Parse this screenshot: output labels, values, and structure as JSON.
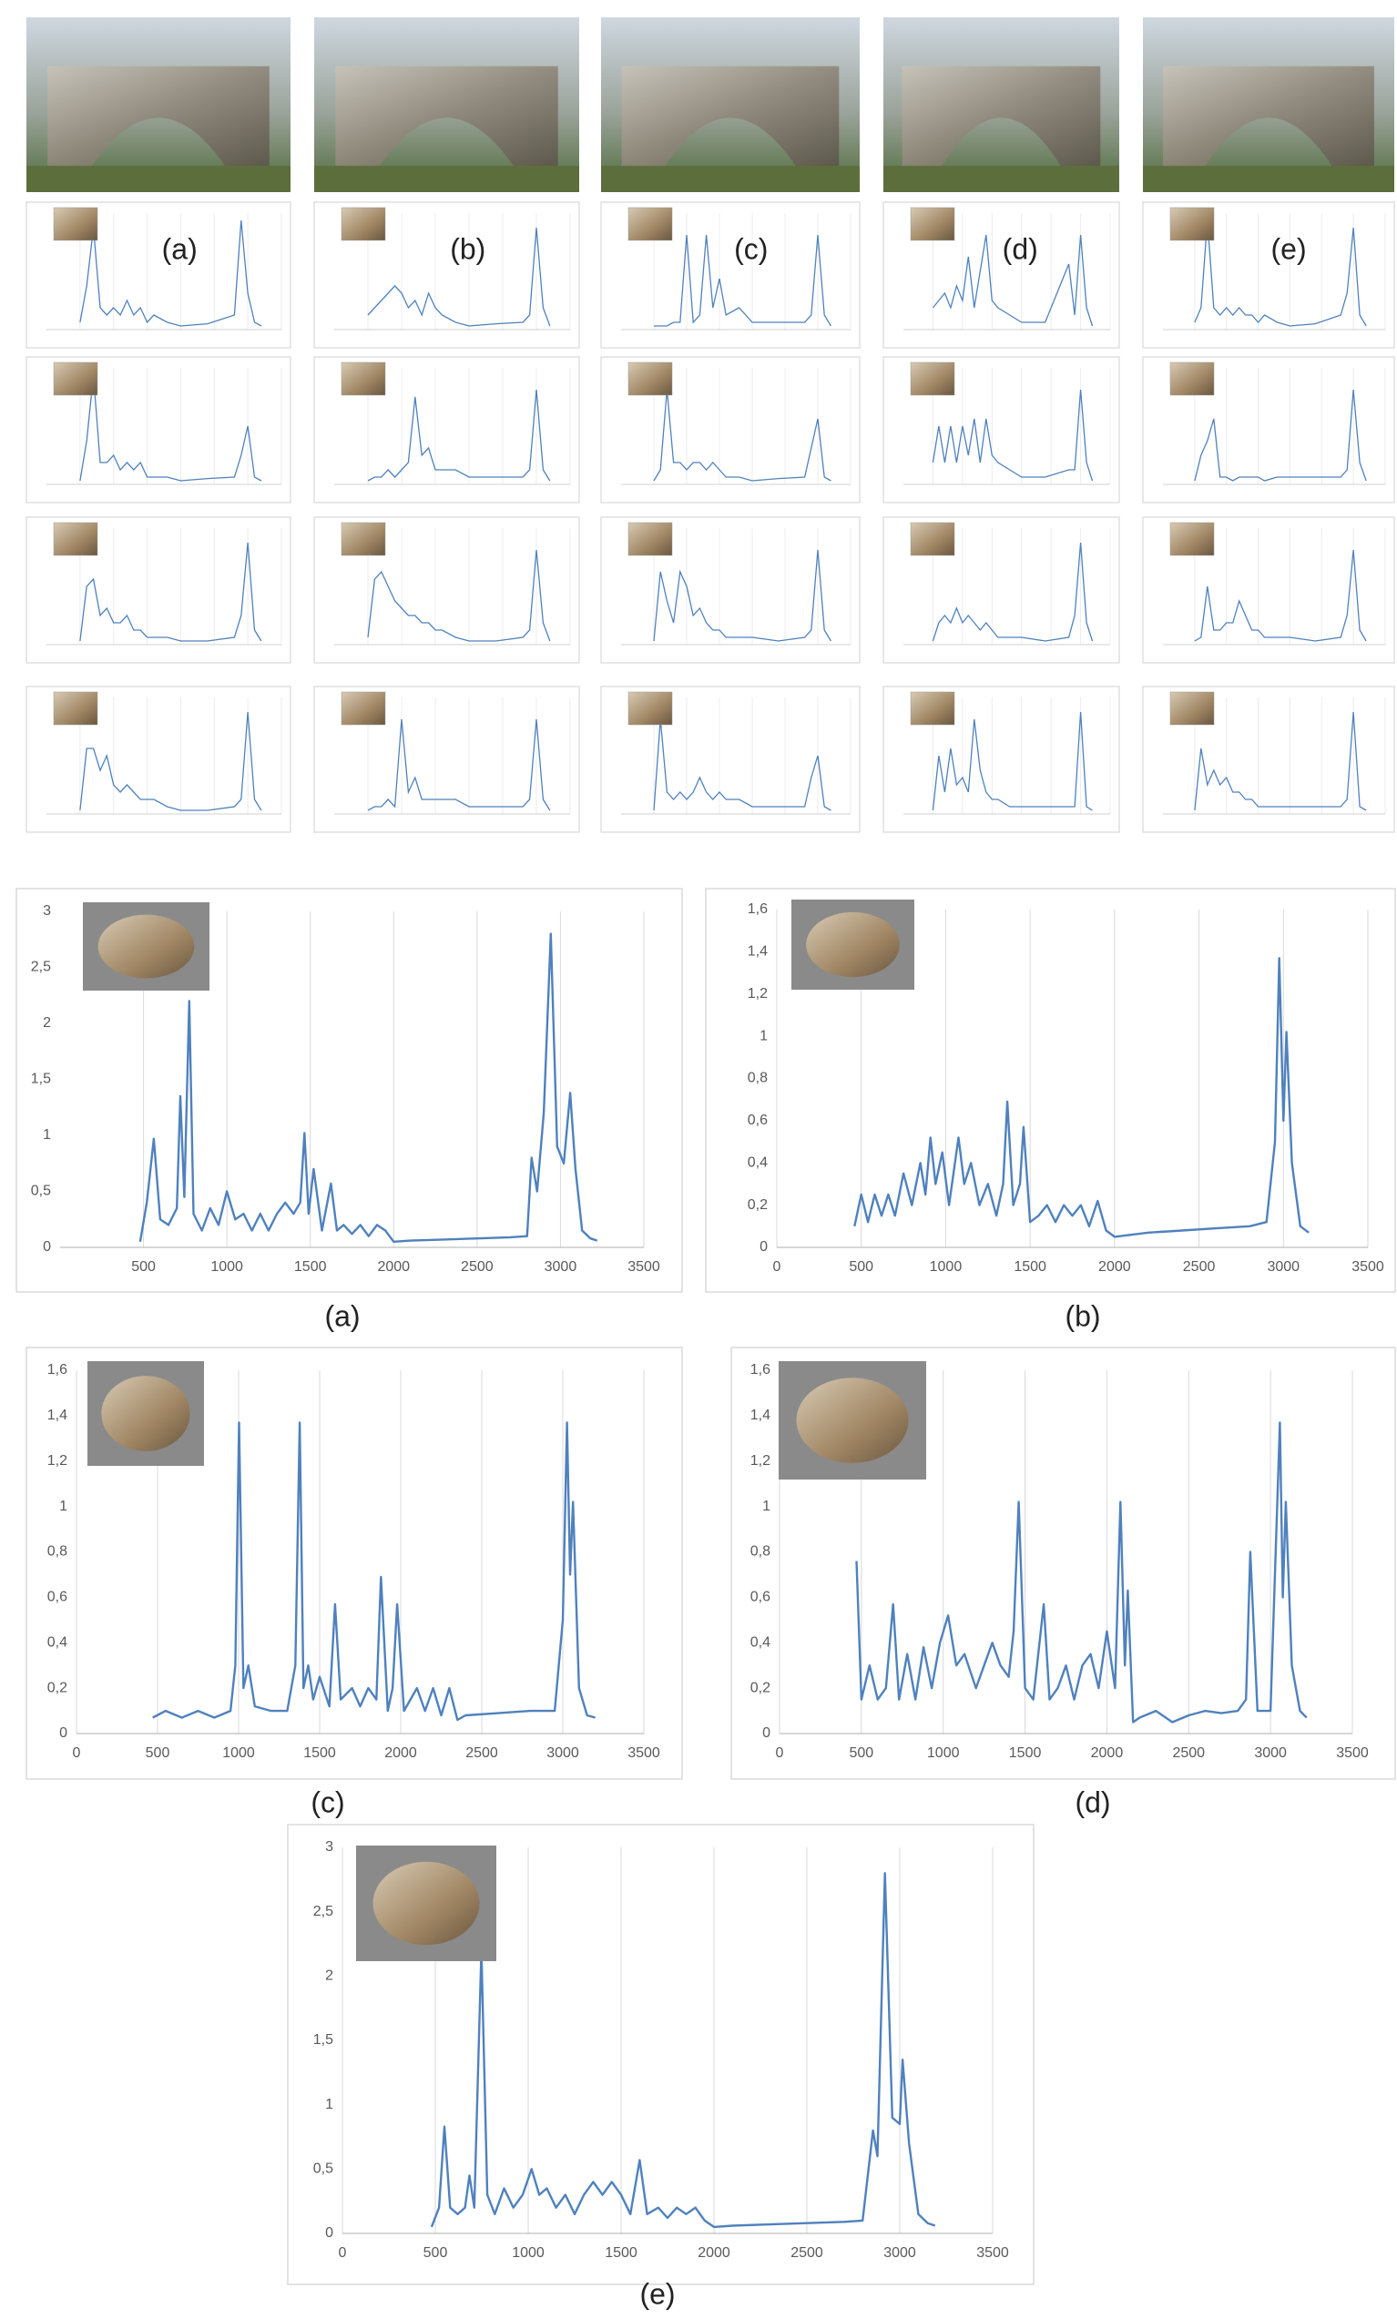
{
  "chart_data": [
    {
      "type": "line",
      "label": "(a)",
      "color": "#4f81bd",
      "grid": true,
      "xlim": [
        0,
        3500
      ],
      "xticks": [
        500,
        1000,
        1500,
        2000,
        2500,
        3000,
        3500
      ],
      "ylim": [
        0,
        3
      ],
      "yticks": [
        0,
        {
          "value": 0.5,
          "label": "0,5"
        },
        1,
        {
          "value": 1.5,
          "label": "1,5"
        },
        2,
        {
          "value": 2.5,
          "label": "2,5"
        },
        3
      ],
      "x": [
        480,
        520,
        562,
        600,
        650,
        700,
        721,
        745,
        774,
        800,
        850,
        900,
        950,
        1000,
        1050,
        1100,
        1150,
        1200,
        1250,
        1300,
        1350,
        1400,
        1440,
        1465,
        1490,
        1520,
        1570,
        1624,
        1660,
        1700,
        1750,
        1800,
        1850,
        1900,
        1950,
        2000,
        2100,
        2300,
        2500,
        2700,
        2800,
        2827,
        2860,
        2900,
        2942,
        2980,
        3020,
        3058,
        3090,
        3130,
        3180,
        3220
      ],
      "values": [
        0.05,
        0.4,
        0.97,
        0.25,
        0.2,
        0.35,
        1.35,
        0.45,
        2.2,
        0.3,
        0.15,
        0.35,
        0.2,
        0.5,
        0.25,
        0.3,
        0.15,
        0.3,
        0.15,
        0.3,
        0.4,
        0.3,
        0.4,
        1.02,
        0.3,
        0.7,
        0.15,
        0.57,
        0.15,
        0.2,
        0.12,
        0.2,
        0.1,
        0.2,
        0.15,
        0.05,
        0.06,
        0.07,
        0.08,
        0.09,
        0.1,
        0.8,
        0.5,
        1.2,
        2.8,
        0.9,
        0.75,
        1.38,
        0.7,
        0.15,
        0.08,
        0.06
      ]
    },
    {
      "type": "line",
      "label": "(b)",
      "color": "#4f81bd",
      "grid": true,
      "xlim": [
        0,
        3500
      ],
      "xticks": [
        0,
        500,
        1000,
        1500,
        2000,
        2500,
        3000,
        3500
      ],
      "ylim": [
        0,
        1.6
      ],
      "yticks": [
        0,
        {
          "value": 0.2,
          "label": "0,2"
        },
        {
          "value": 0.4,
          "label": "0,4"
        },
        {
          "value": 0.6,
          "label": "0,6"
        },
        {
          "value": 0.8,
          "label": "0,8"
        },
        1,
        {
          "value": 1.2,
          "label": "1,2"
        },
        {
          "value": 1.4,
          "label": "1,4"
        },
        {
          "value": 1.6,
          "label": "1,6"
        }
      ],
      "x": [
        460,
        500,
        540,
        580,
        620,
        660,
        700,
        750,
        800,
        850,
        880,
        910,
        940,
        980,
        1020,
        1076,
        1110,
        1150,
        1200,
        1250,
        1300,
        1340,
        1365,
        1400,
        1440,
        1461,
        1500,
        1550,
        1600,
        1650,
        1700,
        1750,
        1800,
        1850,
        1900,
        1950,
        2000,
        2200,
        2400,
        2600,
        2800,
        2900,
        2950,
        2975,
        3000,
        3018,
        3050,
        3100,
        3150
      ],
      "values": [
        0.1,
        0.25,
        0.12,
        0.25,
        0.15,
        0.25,
        0.15,
        0.35,
        0.2,
        0.4,
        0.25,
        0.52,
        0.3,
        0.45,
        0.2,
        0.52,
        0.3,
        0.4,
        0.2,
        0.3,
        0.15,
        0.3,
        0.69,
        0.2,
        0.3,
        0.57,
        0.12,
        0.15,
        0.2,
        0.12,
        0.2,
        0.15,
        0.2,
        0.1,
        0.22,
        0.08,
        0.05,
        0.07,
        0.08,
        0.09,
        0.1,
        0.12,
        0.5,
        1.37,
        0.6,
        1.02,
        0.4,
        0.1,
        0.07
      ]
    },
    {
      "type": "line",
      "label": "(c)",
      "color": "#4f81bd",
      "grid": true,
      "xlim": [
        0,
        3500
      ],
      "xticks": [
        0,
        500,
        1000,
        1500,
        2000,
        2500,
        3000,
        3500
      ],
      "ylim": [
        0,
        1.6
      ],
      "yticks": [
        0,
        {
          "value": 0.2,
          "label": "0,2"
        },
        {
          "value": 0.4,
          "label": "0,4"
        },
        {
          "value": 0.6,
          "label": "0,6"
        },
        {
          "value": 0.8,
          "label": "0,8"
        },
        1,
        {
          "value": 1.2,
          "label": "1,2"
        },
        {
          "value": 1.4,
          "label": "1,4"
        },
        {
          "value": 1.6,
          "label": "1,6"
        }
      ],
      "x": [
        470,
        550,
        650,
        750,
        850,
        950,
        980,
        1003,
        1030,
        1060,
        1100,
        1200,
        1300,
        1350,
        1377,
        1400,
        1430,
        1460,
        1500,
        1560,
        1595,
        1630,
        1700,
        1750,
        1800,
        1850,
        1878,
        1920,
        1950,
        1978,
        2020,
        2100,
        2150,
        2200,
        2250,
        2300,
        2350,
        2400,
        2600,
        2800,
        2950,
        3000,
        3026,
        3045,
        3063,
        3100,
        3150,
        3200
      ],
      "values": [
        0.07,
        0.1,
        0.07,
        0.1,
        0.07,
        0.1,
        0.3,
        1.37,
        0.2,
        0.3,
        0.12,
        0.1,
        0.1,
        0.3,
        1.37,
        0.2,
        0.3,
        0.15,
        0.25,
        0.12,
        0.57,
        0.15,
        0.2,
        0.12,
        0.2,
        0.15,
        0.69,
        0.1,
        0.2,
        0.57,
        0.1,
        0.2,
        0.1,
        0.2,
        0.08,
        0.2,
        0.06,
        0.08,
        0.09,
        0.1,
        0.1,
        0.5,
        1.37,
        0.7,
        1.02,
        0.2,
        0.08,
        0.07
      ]
    },
    {
      "type": "line",
      "label": "(d)",
      "color": "#4f81bd",
      "grid": true,
      "xlim": [
        0,
        3500
      ],
      "xticks": [
        0,
        500,
        1000,
        1500,
        2000,
        2500,
        3000,
        3500
      ],
      "ylim": [
        0,
        1.6
      ],
      "yticks": [
        0,
        {
          "value": 0.2,
          "label": "0,2"
        },
        {
          "value": 0.4,
          "label": "0,4"
        },
        {
          "value": 0.6,
          "label": "0,6"
        },
        {
          "value": 0.8,
          "label": "0,8"
        },
        1,
        {
          "value": 1.2,
          "label": "1,2"
        },
        {
          "value": 1.4,
          "label": "1,4"
        },
        {
          "value": 1.6,
          "label": "1,6"
        }
      ],
      "x": [
        470,
        500,
        550,
        600,
        650,
        694,
        730,
        780,
        830,
        880,
        930,
        980,
        1030,
        1080,
        1130,
        1200,
        1250,
        1300,
        1350,
        1400,
        1430,
        1461,
        1500,
        1550,
        1614,
        1650,
        1700,
        1750,
        1800,
        1850,
        1900,
        1950,
        2000,
        2050,
        2083,
        2110,
        2128,
        2160,
        2200,
        2300,
        2400,
        2500,
        2600,
        2700,
        2800,
        2850,
        2876,
        2920,
        3000,
        3057,
        3075,
        3093,
        3130,
        3180,
        3220
      ],
      "values": [
        0.76,
        0.15,
        0.3,
        0.15,
        0.2,
        0.57,
        0.15,
        0.35,
        0.15,
        0.38,
        0.2,
        0.4,
        0.52,
        0.3,
        0.35,
        0.2,
        0.3,
        0.4,
        0.3,
        0.25,
        0.45,
        1.02,
        0.2,
        0.15,
        0.57,
        0.15,
        0.2,
        0.3,
        0.15,
        0.3,
        0.35,
        0.2,
        0.45,
        0.2,
        1.02,
        0.3,
        0.63,
        0.05,
        0.07,
        0.1,
        0.05,
        0.08,
        0.1,
        0.09,
        0.1,
        0.15,
        0.8,
        0.1,
        0.1,
        1.37,
        0.6,
        1.02,
        0.3,
        0.1,
        0.07
      ]
    },
    {
      "type": "line",
      "label": "(e)",
      "color": "#4f81bd",
      "grid": true,
      "xlim": [
        0,
        3500
      ],
      "xticks": [
        0,
        500,
        1000,
        1500,
        2000,
        2500,
        3000,
        3500
      ],
      "ylim": [
        0,
        3
      ],
      "yticks": [
        0,
        {
          "value": 0.5,
          "label": "0,5"
        },
        1,
        {
          "value": 1.5,
          "label": "1,5"
        },
        2,
        {
          "value": 2.5,
          "label": "2,5"
        },
        3
      ],
      "x": [
        480,
        520,
        549,
        580,
        620,
        660,
        684,
        710,
        748,
        780,
        820,
        870,
        920,
        970,
        1018,
        1060,
        1100,
        1150,
        1200,
        1250,
        1300,
        1350,
        1400,
        1450,
        1500,
        1550,
        1600,
        1640,
        1700,
        1750,
        1800,
        1850,
        1900,
        1950,
        2000,
        2100,
        2300,
        2500,
        2700,
        2800,
        2856,
        2880,
        2920,
        2960,
        3000,
        3015,
        3050,
        3100,
        3150,
        3190
      ],
      "values": [
        0.05,
        0.2,
        0.83,
        0.2,
        0.15,
        0.2,
        0.45,
        0.2,
        2.2,
        0.3,
        0.15,
        0.35,
        0.2,
        0.3,
        0.5,
        0.3,
        0.35,
        0.2,
        0.3,
        0.15,
        0.3,
        0.4,
        0.3,
        0.4,
        0.3,
        0.15,
        0.57,
        0.15,
        0.2,
        0.12,
        0.2,
        0.15,
        0.2,
        0.1,
        0.05,
        0.06,
        0.07,
        0.08,
        0.09,
        0.1,
        0.8,
        0.6,
        2.8,
        0.9,
        0.85,
        1.35,
        0.7,
        0.15,
        0.08,
        0.06
      ]
    }
  ],
  "thumbnail_grid": {
    "labels": [
      "(a)",
      "(b)",
      "(c)",
      "(d)",
      "(e)"
    ],
    "color": "#4f81bd",
    "xlim": [
      0,
      3500
    ],
    "ylim": [
      0,
      1.6
    ],
    "x": [
      500,
      600,
      700,
      800,
      900,
      1000,
      1100,
      1200,
      1300,
      1400,
      1500,
      1600,
      1800,
      2000,
      2400,
      2800,
      2900,
      3000,
      3100,
      3200
    ],
    "spectra": [
      [
        0.1,
        0.6,
        1.4,
        0.3,
        0.2,
        0.3,
        0.2,
        0.4,
        0.2,
        0.3,
        0.1,
        0.2,
        0.1,
        0.05,
        0.08,
        0.2,
        1.5,
        0.5,
        0.1,
        0.05
      ],
      [
        0.2,
        0.3,
        0.4,
        0.5,
        0.6,
        0.5,
        0.3,
        0.4,
        0.2,
        0.5,
        0.3,
        0.2,
        0.1,
        0.05,
        0.08,
        0.1,
        0.2,
        1.4,
        0.3,
        0.05
      ],
      [
        0.05,
        0.05,
        0.05,
        0.1,
        0.1,
        1.3,
        0.1,
        0.2,
        1.3,
        0.3,
        0.7,
        0.2,
        0.3,
        0.1,
        0.1,
        0.1,
        0.2,
        1.3,
        0.2,
        0.05
      ],
      [
        0.3,
        0.4,
        0.5,
        0.3,
        0.6,
        0.4,
        1.0,
        0.3,
        0.8,
        1.3,
        0.4,
        0.3,
        0.2,
        0.1,
        0.1,
        0.9,
        0.2,
        1.3,
        0.3,
        0.05
      ],
      [
        0.1,
        0.3,
        1.5,
        0.3,
        0.2,
        0.3,
        0.2,
        0.3,
        0.2,
        0.2,
        0.1,
        0.2,
        0.1,
        0.05,
        0.08,
        0.2,
        0.5,
        1.4,
        0.2,
        0.05
      ],
      [
        0.05,
        0.6,
        1.5,
        0.3,
        0.3,
        0.4,
        0.2,
        0.3,
        0.2,
        0.3,
        0.1,
        0.1,
        0.1,
        0.05,
        0.08,
        0.1,
        0.4,
        0.8,
        0.1,
        0.05
      ],
      [
        0.05,
        0.1,
        0.1,
        0.2,
        0.1,
        0.2,
        0.3,
        1.2,
        0.4,
        0.5,
        0.2,
        0.2,
        0.2,
        0.1,
        0.1,
        0.1,
        0.2,
        1.3,
        0.2,
        0.05
      ],
      [
        0.05,
        0.2,
        1.3,
        0.3,
        0.3,
        0.2,
        0.3,
        0.3,
        0.2,
        0.3,
        0.2,
        0.1,
        0.1,
        0.05,
        0.08,
        0.1,
        0.5,
        0.9,
        0.1,
        0.05
      ],
      [
        0.3,
        0.8,
        0.3,
        0.8,
        0.3,
        0.8,
        0.4,
        0.9,
        0.3,
        0.9,
        0.4,
        0.3,
        0.2,
        0.1,
        0.1,
        0.2,
        0.2,
        1.3,
        0.3,
        0.05
      ],
      [
        0.05,
        0.4,
        0.6,
        0.9,
        0.1,
        0.1,
        0.05,
        0.1,
        0.1,
        0.1,
        0.1,
        0.05,
        0.1,
        0.1,
        0.1,
        0.1,
        0.2,
        1.3,
        0.3,
        0.05
      ],
      [
        0.05,
        0.8,
        0.9,
        0.4,
        0.5,
        0.3,
        0.3,
        0.4,
        0.2,
        0.2,
        0.1,
        0.1,
        0.1,
        0.05,
        0.05,
        0.1,
        0.4,
        1.4,
        0.2,
        0.05
      ],
      [
        0.1,
        0.9,
        1.0,
        0.8,
        0.6,
        0.5,
        0.4,
        0.4,
        0.3,
        0.3,
        0.2,
        0.2,
        0.1,
        0.05,
        0.05,
        0.1,
        0.2,
        1.3,
        0.3,
        0.05
      ],
      [
        0.05,
        1.0,
        0.6,
        0.3,
        1.0,
        0.8,
        0.4,
        0.5,
        0.3,
        0.2,
        0.2,
        0.1,
        0.1,
        0.1,
        0.05,
        0.1,
        0.2,
        1.3,
        0.2,
        0.05
      ],
      [
        0.05,
        0.3,
        0.4,
        0.3,
        0.5,
        0.3,
        0.4,
        0.3,
        0.2,
        0.3,
        0.2,
        0.1,
        0.1,
        0.1,
        0.05,
        0.1,
        0.4,
        1.4,
        0.3,
        0.05
      ],
      [
        0.05,
        0.1,
        0.8,
        0.2,
        0.2,
        0.3,
        0.3,
        0.6,
        0.4,
        0.2,
        0.2,
        0.1,
        0.1,
        0.1,
        0.05,
        0.1,
        0.4,
        1.3,
        0.2,
        0.05
      ],
      [
        0.05,
        0.9,
        0.9,
        0.6,
        0.8,
        0.4,
        0.3,
        0.4,
        0.3,
        0.2,
        0.2,
        0.2,
        0.1,
        0.05,
        0.05,
        0.1,
        0.2,
        1.4,
        0.2,
        0.05
      ],
      [
        0.05,
        0.1,
        0.1,
        0.2,
        0.1,
        1.3,
        0.3,
        0.5,
        0.2,
        0.2,
        0.2,
        0.2,
        0.2,
        0.1,
        0.1,
        0.1,
        0.2,
        1.3,
        0.2,
        0.05
      ],
      [
        0.05,
        1.3,
        0.3,
        0.2,
        0.3,
        0.2,
        0.3,
        0.5,
        0.3,
        0.2,
        0.3,
        0.2,
        0.2,
        0.1,
        0.1,
        0.1,
        0.5,
        0.8,
        0.1,
        0.05
      ],
      [
        0.05,
        0.8,
        0.3,
        0.9,
        0.4,
        0.5,
        0.3,
        1.3,
        0.6,
        0.3,
        0.2,
        0.2,
        0.1,
        0.1,
        0.1,
        0.1,
        0.1,
        1.4,
        0.1,
        0.05
      ],
      [
        0.05,
        0.9,
        0.4,
        0.6,
        0.4,
        0.5,
        0.3,
        0.3,
        0.2,
        0.2,
        0.1,
        0.1,
        0.1,
        0.1,
        0.1,
        0.1,
        0.2,
        1.4,
        0.1,
        0.05
      ]
    ]
  }
}
